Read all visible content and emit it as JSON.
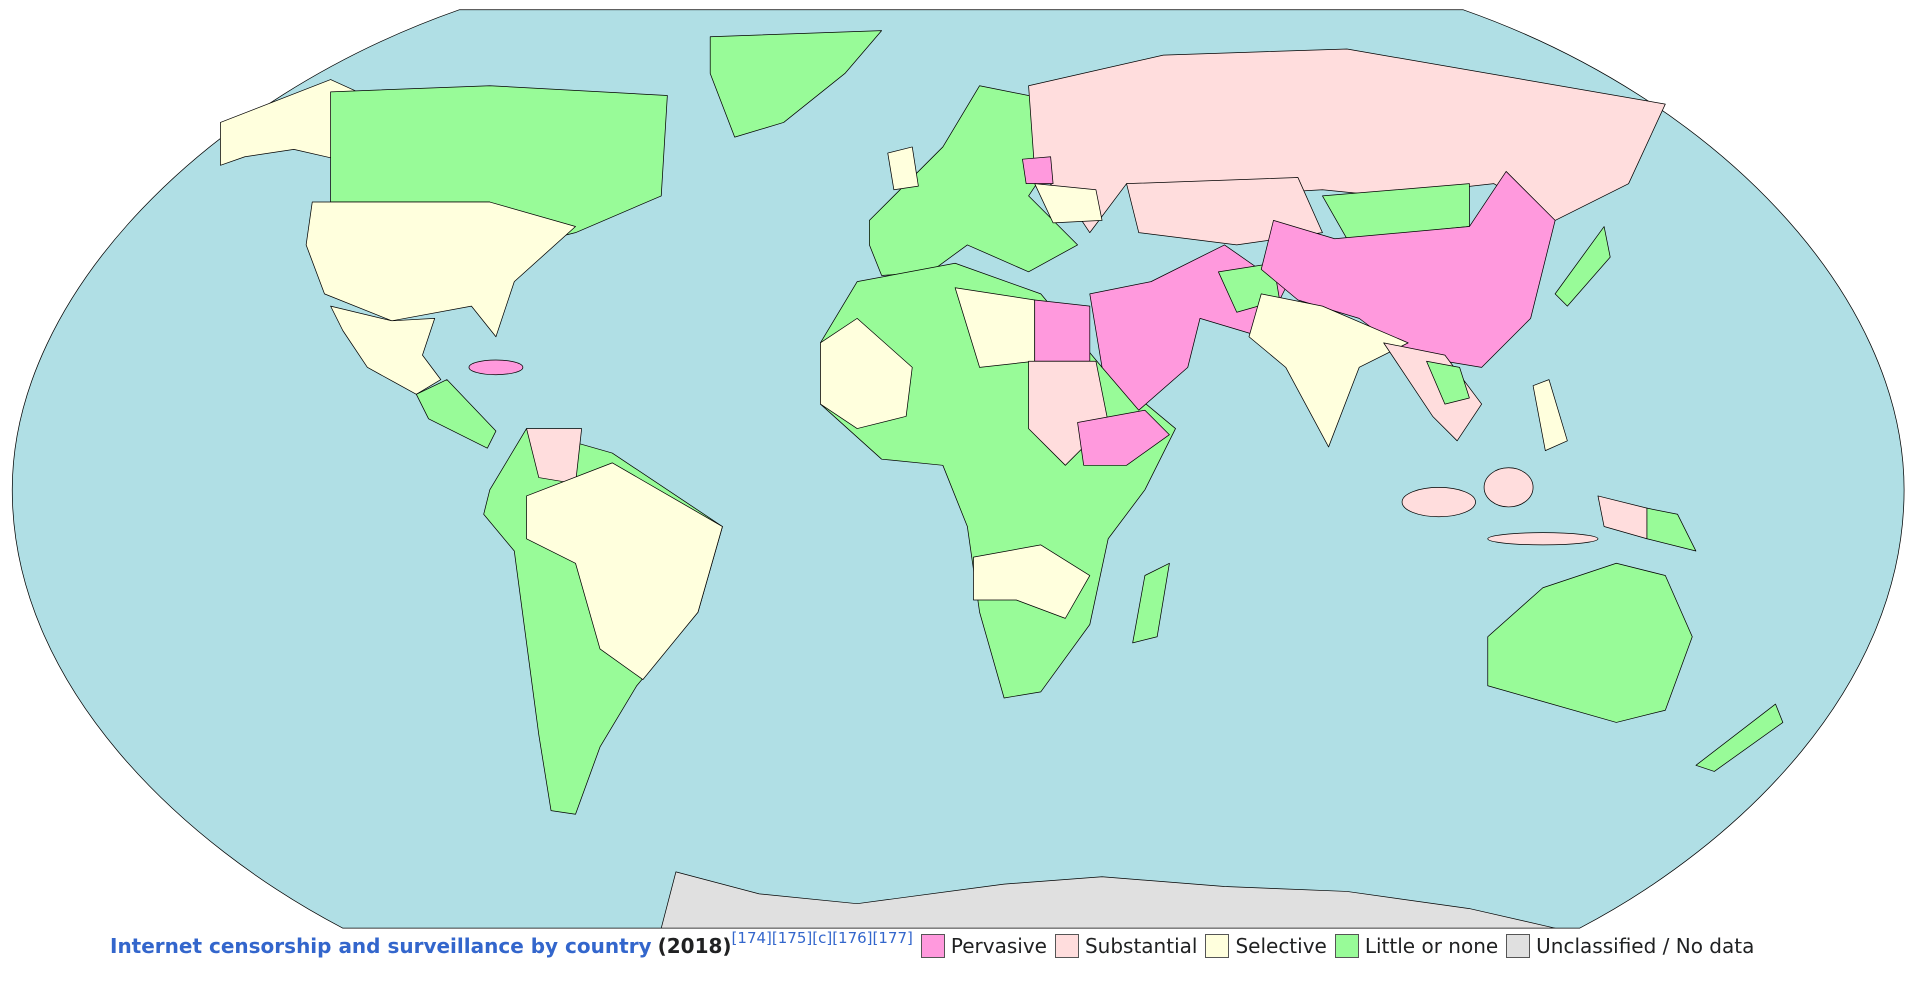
{
  "caption": {
    "title": "Internet censorship and surveillance by country",
    "year": "(2018)",
    "refs": [
      "[174]",
      "[175]",
      "[c]",
      "[176]",
      "[177]"
    ]
  },
  "legend": [
    {
      "label": "Pervasive",
      "color": "#ff99dd"
    },
    {
      "label": "Substantial",
      "color": "#ffdddd"
    },
    {
      "label": "Selective",
      "color": "#ffffdd"
    },
    {
      "label": "Little or none",
      "color": "#98fb98"
    },
    {
      "label": "Unclassified / No data",
      "color": "#e0e0e0"
    }
  ]
}
